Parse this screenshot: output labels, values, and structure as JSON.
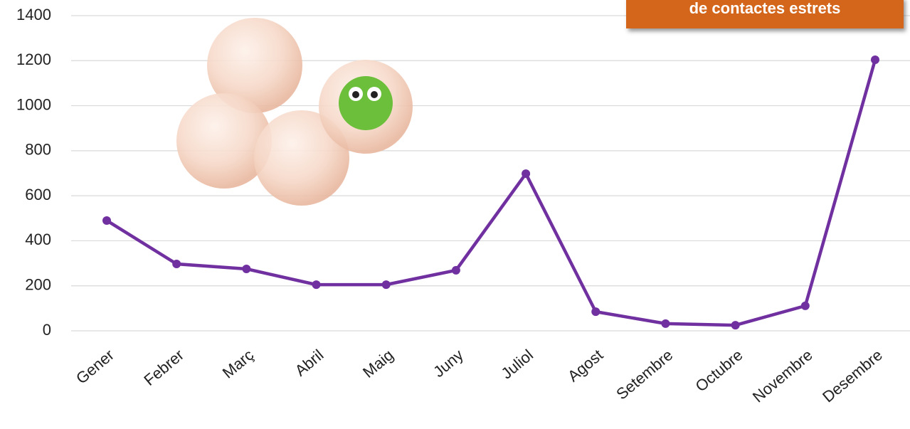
{
  "chart_data": {
    "type": "line",
    "annotation": "de contactes estrets",
    "categories": [
      "Gener",
      "Febrer",
      "Març",
      "Abril",
      "Maig",
      "Juny",
      "Juliol",
      "Agost",
      "Setembre",
      "Octubre",
      "Novembre",
      "Desembre"
    ],
    "series": [
      {
        "name": null,
        "color": "#7030a0",
        "values": [
          490,
          297,
          275,
          205,
          205,
          269,
          698,
          85,
          32,
          25,
          111,
          1204
        ]
      }
    ],
    "ylim": [
      0,
      1400
    ],
    "yticks": [
      0,
      200,
      400,
      600,
      800,
      1000,
      1200,
      1400
    ],
    "grid": true
  }
}
